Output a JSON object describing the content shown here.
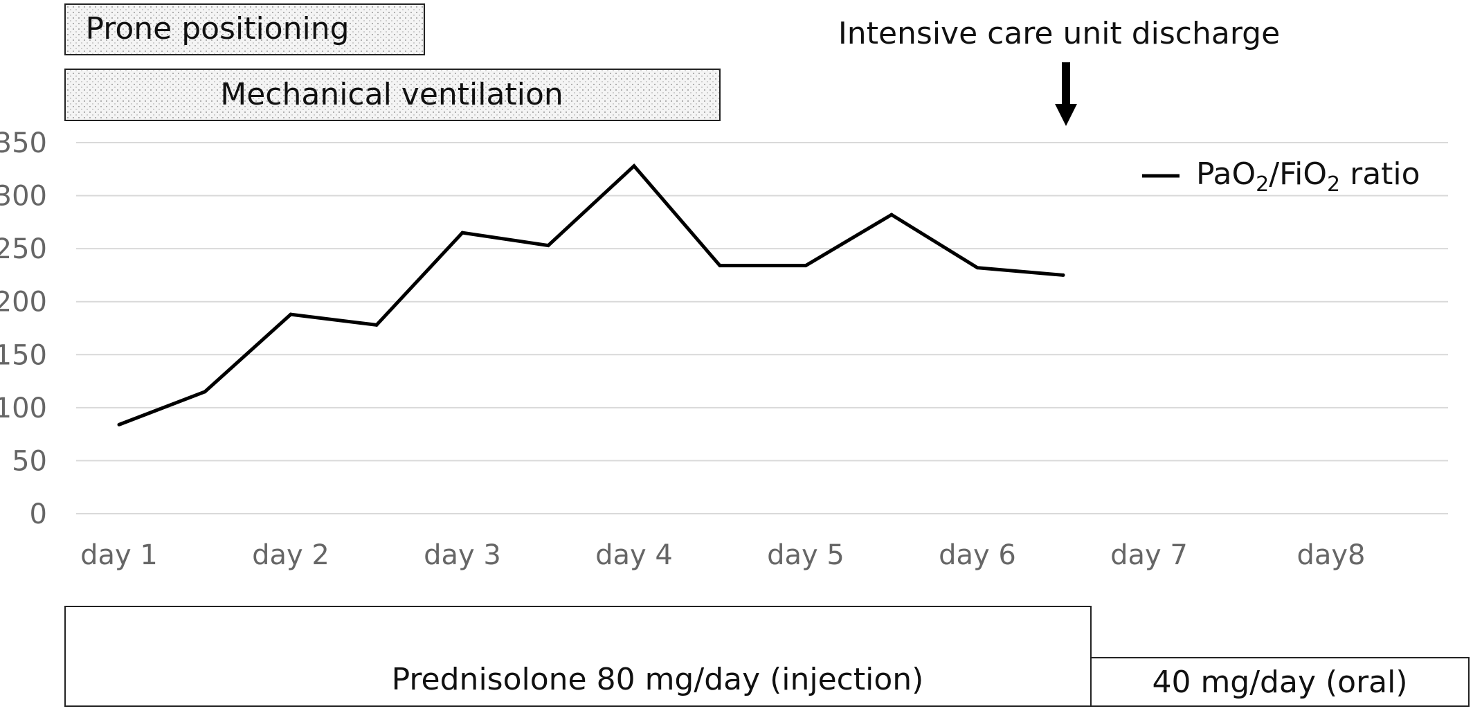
{
  "chart_data": {
    "type": "line",
    "categories": [
      "day 1",
      "day 2",
      "day 3",
      "day 4",
      "day 5",
      "day 6",
      "day 7",
      "day8"
    ],
    "x": [
      1,
      1.5,
      2,
      2.5,
      3,
      3.5,
      4,
      4.5,
      5,
      5.5,
      6,
      6.5
    ],
    "series": [
      {
        "name": "PaO2/FiO2 ratio",
        "values": [
          84,
          115,
          188,
          178,
          265,
          253,
          328,
          234,
          234,
          282,
          232,
          225
        ]
      }
    ],
    "y_ticks": [
      0,
      50,
      100,
      150,
      200,
      250,
      300,
      350
    ],
    "ylim": [
      0,
      350
    ],
    "xlabel": "",
    "ylabel": "",
    "grid": true,
    "legend": "top-right",
    "line_color": "#000000"
  },
  "timeline": {
    "prone": {
      "label": "Prone positioning",
      "start_day": 1,
      "end_day": 3.1
    },
    "ventilation": {
      "label": "Mechanical ventilation",
      "start_day": 1,
      "end_day": 4.8
    },
    "icu_discharge": {
      "label": "Intensive care unit discharge",
      "day": 6.5
    },
    "prednisolone_injection": {
      "label": "Prednisolone 80 mg/day (injection)",
      "start_day": 1,
      "end_day": 6.6
    },
    "prednisolone_oral": {
      "label": "40 mg/day (oral)",
      "start_day": 6.6,
      "end_day": 8.4
    }
  },
  "legend": {
    "name": "PaO",
    "sub1": "2",
    "mid": "/FiO",
    "sub2": "2",
    "suffix": " ratio"
  }
}
